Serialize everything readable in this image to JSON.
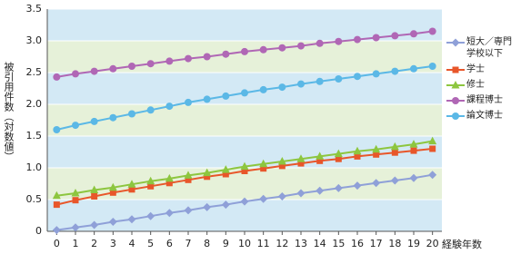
{
  "chart_data": {
    "type": "line",
    "y_label": "被引用件数（対数値）",
    "x_label": "経験年数",
    "x": [
      0,
      1,
      2,
      3,
      4,
      5,
      6,
      7,
      8,
      9,
      10,
      11,
      12,
      13,
      14,
      15,
      16,
      17,
      18,
      19,
      20
    ],
    "xlim": [
      -0.5,
      20.5
    ],
    "xticks": [
      0,
      1,
      2,
      3,
      4,
      5,
      6,
      7,
      8,
      9,
      10,
      11,
      12,
      13,
      14,
      15,
      16,
      17,
      18,
      19,
      20
    ],
    "ylim": [
      0,
      3.5
    ],
    "yticks": [
      0,
      0.5,
      {
        "value": 1,
        "label": "1.0"
      },
      1.5,
      {
        "value": 2,
        "label": "2.0"
      },
      2.5,
      {
        "value": 3,
        "label": "3.0"
      },
      3.5
    ],
    "grid": true,
    "band_colors": [
      "#d3e9f5",
      "#e6f1d9"
    ],
    "legend": "right",
    "series": [
      {
        "name": "短大／専門学校以下",
        "color": "#8fa0d8",
        "marker": "diamond",
        "values": [
          0.02,
          0.06,
          0.1,
          0.15,
          0.19,
          0.24,
          0.29,
          0.33,
          0.38,
          0.42,
          0.47,
          0.51,
          0.55,
          0.6,
          0.64,
          0.68,
          0.72,
          0.76,
          0.8,
          0.84,
          0.89
        ]
      },
      {
        "name": "学士",
        "color": "#e8562a",
        "marker": "square",
        "values": [
          0.42,
          0.49,
          0.55,
          0.61,
          0.66,
          0.71,
          0.76,
          0.81,
          0.86,
          0.9,
          0.95,
          0.99,
          1.03,
          1.07,
          1.11,
          1.14,
          1.18,
          1.21,
          1.24,
          1.27,
          1.3
        ]
      },
      {
        "name": "修士",
        "color": "#8dc63f",
        "marker": "triangle",
        "values": [
          0.56,
          0.6,
          0.65,
          0.69,
          0.74,
          0.79,
          0.83,
          0.88,
          0.92,
          0.97,
          1.02,
          1.06,
          1.1,
          1.14,
          1.18,
          1.22,
          1.26,
          1.29,
          1.33,
          1.37,
          1.42
        ]
      },
      {
        "name": "課程博士",
        "color": "#b067b5",
        "marker": "circle",
        "values": [
          2.43,
          2.48,
          2.52,
          2.56,
          2.6,
          2.64,
          2.68,
          2.72,
          2.75,
          2.79,
          2.83,
          2.86,
          2.89,
          2.92,
          2.96,
          2.99,
          3.02,
          3.05,
          3.08,
          3.11,
          3.15
        ]
      },
      {
        "name": "論文博士",
        "color": "#5bb8e6",
        "marker": "circle",
        "values": [
          1.6,
          1.67,
          1.73,
          1.79,
          1.85,
          1.91,
          1.97,
          2.03,
          2.08,
          2.13,
          2.18,
          2.23,
          2.27,
          2.32,
          2.36,
          2.4,
          2.44,
          2.48,
          2.52,
          2.56,
          2.6
        ]
      }
    ]
  }
}
